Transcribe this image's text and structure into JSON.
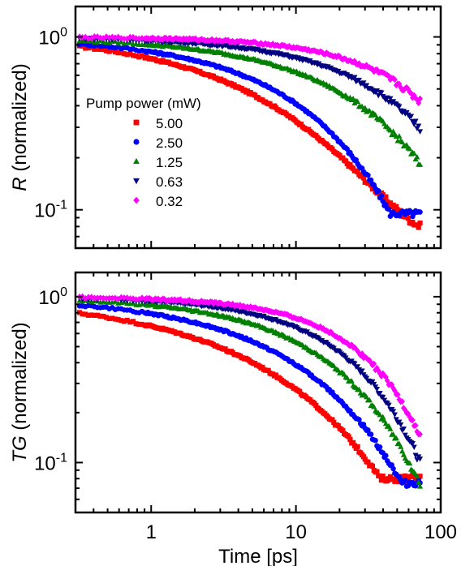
{
  "chart_data": [
    {
      "type": "scatter",
      "panel": "top",
      "ylabel_italic": "R",
      "ylabel_rest": " (normalized)",
      "xlabel": "",
      "xscale": "log",
      "yscale": "log",
      "xlim": [
        0.3,
        100
      ],
      "ylim": [
        0.06,
        1.5
      ],
      "x_ticks": [
        {
          "v": 1,
          "label": "1"
        },
        {
          "v": 10,
          "label": "10"
        },
        {
          "v": 100,
          "label": "100"
        }
      ],
      "y_ticks": [
        {
          "v": 1,
          "base": "10",
          "exp": "0"
        },
        {
          "v": 0.1,
          "base": "10",
          "exp": "-1"
        }
      ],
      "x_tick_labels_visible": false,
      "legend": {
        "title": "Pump power (mW)",
        "placement": "middle-left"
      },
      "series": [
        {
          "name": "5.00",
          "color": "#ff0000",
          "marker": "square",
          "tau": 6.0,
          "beta": 0.55,
          "amp": 1.0,
          "offset": 0.06,
          "floor": 0.0,
          "x_end": 72
        },
        {
          "name": "2.50",
          "color": "#0000ff",
          "marker": "circle",
          "tau": 12.0,
          "beta": 0.65,
          "amp": 1.0,
          "offset": 0.0,
          "floor": 0.095,
          "x_end": 72
        },
        {
          "name": "1.25",
          "color": "#008000",
          "marker": "triangle-up",
          "tau": 32.0,
          "beta": 0.65,
          "amp": 1.0,
          "offset": 0.0,
          "floor": 0.0,
          "x_end": 72
        },
        {
          "name": "0.63",
          "color": "#000080",
          "marker": "triangle-down",
          "tau": 55.0,
          "beta": 0.75,
          "amp": 1.0,
          "offset": 0.0,
          "floor": 0.0,
          "x_end": 72
        },
        {
          "name": "0.32",
          "color": "#ff00ff",
          "marker": "diamond",
          "tau": 85.0,
          "beta": 0.9,
          "amp": 1.0,
          "offset": 0.0,
          "floor": 0.0,
          "x_end": 72
        }
      ]
    },
    {
      "type": "scatter",
      "panel": "bottom",
      "ylabel_italic": "TG",
      "ylabel_rest": " (normalized)",
      "xlabel": "Time [ps]",
      "xscale": "log",
      "yscale": "log",
      "xlim": [
        0.3,
        100
      ],
      "ylim": [
        0.05,
        1.4
      ],
      "x_ticks": [
        {
          "v": 1,
          "label": "1"
        },
        {
          "v": 10,
          "label": "10"
        },
        {
          "v": 100,
          "label": "100"
        }
      ],
      "y_ticks": [
        {
          "v": 1,
          "base": "10",
          "exp": "0"
        },
        {
          "v": 0.1,
          "base": "10",
          "exp": "-1"
        }
      ],
      "x_tick_labels_visible": true,
      "series": [
        {
          "name": "5.00",
          "color": "#ff0000",
          "marker": "square",
          "tau": 6.0,
          "beta": 0.5,
          "amp": 1.0,
          "offset": 0.0,
          "floor": 0.08,
          "x_end": 72
        },
        {
          "name": "2.50",
          "color": "#0000ff",
          "marker": "circle",
          "tau": 11.0,
          "beta": 0.6,
          "amp": 1.0,
          "offset": 0.0,
          "floor": 0.075,
          "x_end": 72
        },
        {
          "name": "1.25",
          "color": "#008000",
          "marker": "triangle-up",
          "tau": 19.0,
          "beta": 0.72,
          "amp": 1.0,
          "offset": 0.0,
          "floor": 0.07,
          "x_end": 72
        },
        {
          "name": "0.63",
          "color": "#000080",
          "marker": "triangle-down",
          "tau": 27.0,
          "beta": 0.85,
          "amp": 1.0,
          "offset": 0.0,
          "floor": 0.065,
          "x_end": 72
        },
        {
          "name": "0.32",
          "color": "#ff00ff",
          "marker": "diamond",
          "tau": 36.0,
          "beta": 0.95,
          "amp": 1.0,
          "offset": 0.0,
          "floor": 0.09,
          "x_end": 72
        }
      ]
    }
  ]
}
